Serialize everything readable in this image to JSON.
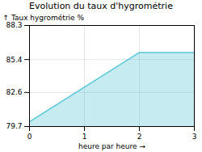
{
  "chart_data": {
    "type": "area",
    "title": "Evolution du taux d'hygrométrie",
    "xlabel": "heure par heure",
    "ylabel": "Taux hygrométrie %",
    "x": [
      0,
      2,
      3
    ],
    "values": [
      80.1,
      86.0,
      86.0
    ],
    "color": "#5bc8d8",
    "xlim": [
      0,
      3
    ],
    "ylim": [
      79.7,
      88.3
    ],
    "xticks": [
      0,
      1,
      2,
      3
    ],
    "yticks": [
      79.7,
      82.6,
      85.4,
      88.3
    ],
    "grid": true
  }
}
